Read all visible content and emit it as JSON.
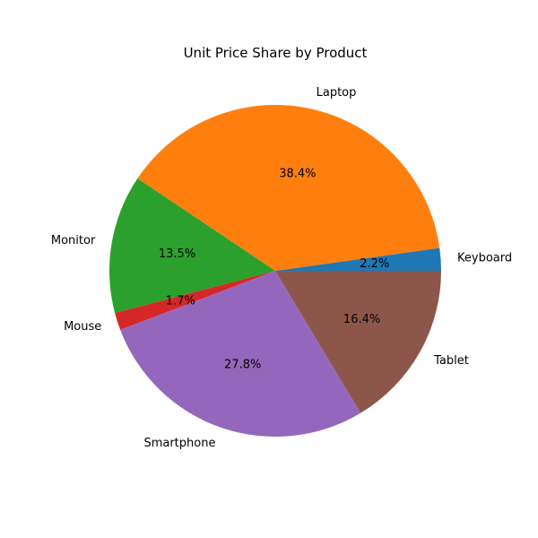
{
  "chart_data": {
    "type": "pie",
    "title": "Unit Price Share by Product",
    "categories": [
      "Keyboard",
      "Laptop",
      "Monitor",
      "Mouse",
      "Smartphone",
      "Tablet"
    ],
    "values": [
      2.2,
      38.4,
      13.5,
      1.7,
      27.8,
      16.4
    ],
    "value_labels": [
      "2.2%",
      "38.4%",
      "13.5%",
      "1.7%",
      "27.8%",
      "16.4%"
    ],
    "colors": [
      "#1f77b4",
      "#ff7f0e",
      "#2ca02c",
      "#d62728",
      "#9467bd",
      "#8c564b"
    ],
    "start_angle_deg": 0,
    "direction": "counterclockwise",
    "legend": "none"
  }
}
